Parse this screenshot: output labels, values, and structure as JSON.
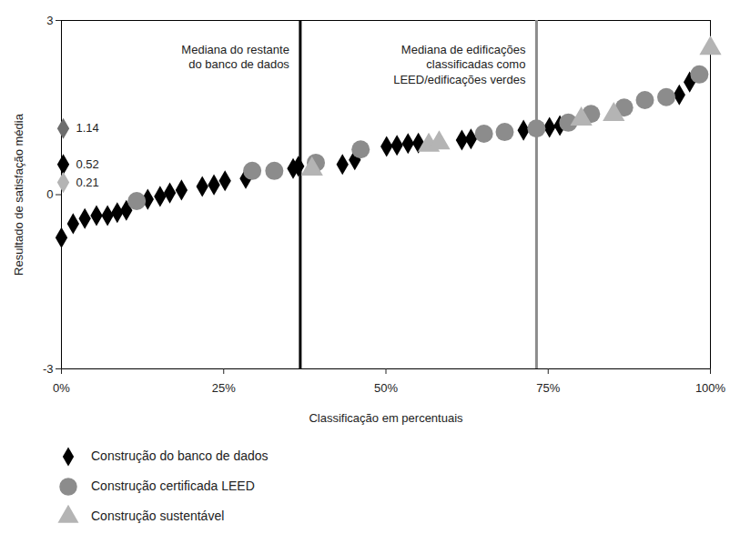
{
  "chart_data": {
    "type": "scatter",
    "xlabel": "Classificação em percentuais",
    "ylabel": "Resultado de satisfação média",
    "xlim": [
      0,
      100
    ],
    "xticks": [
      {
        "value": 0,
        "label": "0%"
      },
      {
        "value": 25,
        "label": "25%"
      },
      {
        "value": 50,
        "label": "50%"
      },
      {
        "value": 75,
        "label": "75%"
      },
      {
        "value": 100,
        "label": "100%"
      }
    ],
    "ylim": [
      -3,
      3
    ],
    "yticks": [
      -3,
      0,
      3
    ],
    "grid": false,
    "legend": "bottom",
    "series": [
      {
        "name": "Construção do banco de dados",
        "color": "#000000",
        "marker": "diamond",
        "x": [
          0,
          1.8,
          3.6,
          5.4,
          7.1,
          8.6,
          10.0,
          13.3,
          15.2,
          16.7,
          18.5,
          21.7,
          23.5,
          25.2,
          28.4,
          35.7,
          36.5,
          43.3,
          45.2,
          50.1,
          51.7,
          53.4,
          55.0,
          61.7,
          63.1,
          71.2,
          75.2,
          76.8,
          95.2,
          96.8
        ],
        "values": [
          -0.74,
          -0.5,
          -0.41,
          -0.36,
          -0.36,
          -0.31,
          -0.27,
          -0.08,
          -0.03,
          0.03,
          0.08,
          0.14,
          0.17,
          0.24,
          0.28,
          0.45,
          0.49,
          0.52,
          0.6,
          0.83,
          0.85,
          0.88,
          0.89,
          0.94,
          0.96,
          1.11,
          1.16,
          1.19,
          1.72,
          1.94
        ]
      },
      {
        "name": "Construção certificada LEED",
        "color": "#8c8c8c",
        "marker": "circle",
        "x": [
          11.6,
          29.4,
          32.8,
          39.2,
          46.1,
          65.1,
          68.3,
          73.2,
          78.1,
          81.6,
          86.7,
          89.9,
          93.2,
          98.3
        ],
        "values": [
          -0.11,
          0.41,
          0.41,
          0.55,
          0.78,
          1.05,
          1.08,
          1.14,
          1.24,
          1.39,
          1.5,
          1.63,
          1.68,
          2.07
        ]
      },
      {
        "name": "Construção sustentável",
        "color": "#b4b4b4",
        "marker": "triangle",
        "x": [
          38.6,
          56.6,
          58.2,
          80.1,
          85.1,
          100
        ],
        "values": [
          0.44,
          0.85,
          0.89,
          1.3,
          1.38,
          2.52
        ]
      }
    ],
    "reference_lines": [
      {
        "x": 36.8,
        "label": "Mediana do restante\ndo banco de dados",
        "color": "#000000"
      },
      {
        "x": 73.2,
        "label": "Mediana de edificações\nclassificadas como\nLEED/edificações verdes",
        "color": "#8c8c8c"
      }
    ],
    "median_markers": [
      {
        "value": 1.14,
        "color": "#6e6e6e"
      },
      {
        "value": 0.52,
        "color": "#000000"
      },
      {
        "value": 0.21,
        "color": "#b4b4b4"
      }
    ]
  }
}
